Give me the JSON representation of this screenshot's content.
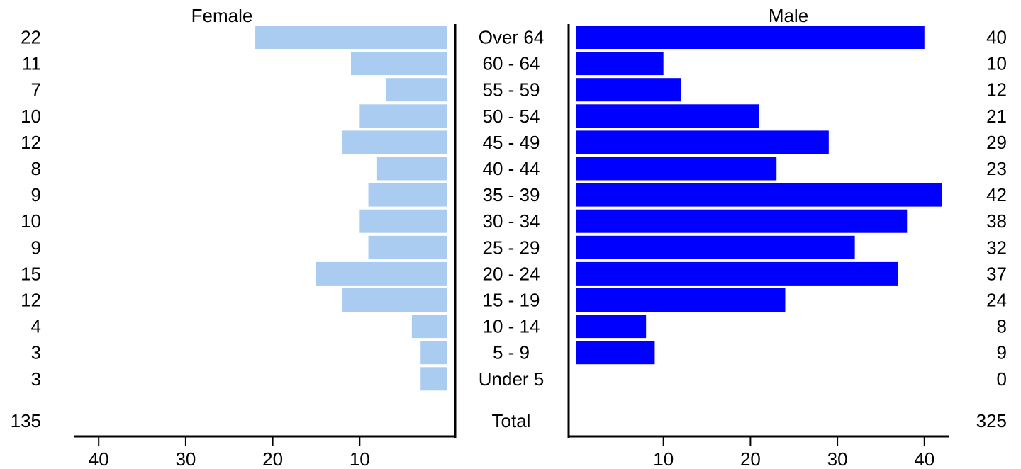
{
  "chart_data": {
    "type": "bar",
    "subtype": "population-pyramid",
    "categories": [
      "Over 64",
      "60 - 64",
      "55 - 59",
      "50 - 54",
      "45 - 49",
      "40 - 44",
      "35 - 39",
      "30 - 34",
      "25 - 29",
      "20 - 24",
      "15 - 19",
      "10 - 14",
      "5 - 9",
      "Under 5"
    ],
    "series": [
      {
        "name": "Female",
        "color": "#aaccf0",
        "side": "left",
        "values": [
          22,
          11,
          7,
          10,
          12,
          8,
          9,
          10,
          9,
          15,
          12,
          4,
          3,
          3
        ],
        "total": 135
      },
      {
        "name": "Male",
        "color": "#0000ff",
        "side": "right",
        "values": [
          40,
          10,
          12,
          21,
          29,
          23,
          42,
          38,
          32,
          37,
          24,
          8,
          9,
          0
        ],
        "total": 325
      }
    ],
    "total_label": "Total",
    "left_axis": {
      "ticks": [
        40,
        30,
        20,
        10
      ],
      "direction": "reversed"
    },
    "right_axis": {
      "ticks": [
        10,
        20,
        30,
        40
      ]
    },
    "xlim": [
      0,
      43
    ],
    "grid": false,
    "legend": "none"
  }
}
